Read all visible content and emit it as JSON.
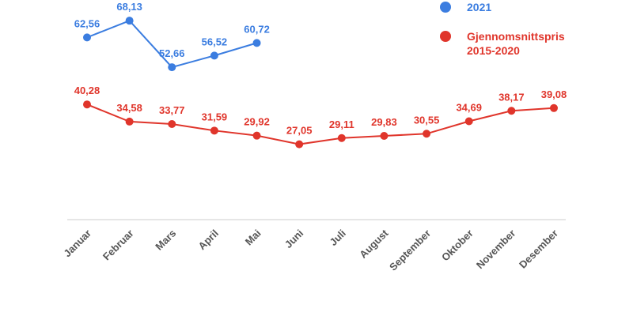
{
  "chart_data": {
    "type": "line",
    "categories": [
      "Januar",
      "Februar",
      "Mars",
      "April",
      "Mai",
      "Juni",
      "Juli",
      "August",
      "September",
      "Oktober",
      "November",
      "Desember"
    ],
    "series": [
      {
        "name": "2021",
        "color": "#3b7de0",
        "values": [
          62.56,
          68.13,
          52.66,
          56.52,
          60.72,
          null,
          null,
          null,
          null,
          null,
          null,
          null
        ],
        "value_labels": [
          "62,56",
          "68,13",
          "52,66",
          "56,52",
          "60,72",
          null,
          null,
          null,
          null,
          null,
          null,
          null
        ]
      },
      {
        "name": "Gjennomsnittspris 2015-2020",
        "color": "#e0352b",
        "values": [
          40.28,
          34.58,
          33.77,
          31.59,
          29.92,
          27.05,
          29.11,
          29.83,
          30.55,
          34.69,
          38.17,
          39.08
        ],
        "value_labels": [
          "40,28",
          "34,58",
          "33,77",
          "31,59",
          "29,92",
          "27,05",
          "29,11",
          "29,83",
          "30,55",
          "34,69",
          "38,17",
          "39,08"
        ]
      }
    ],
    "ylim": [
      2,
      75
    ]
  }
}
